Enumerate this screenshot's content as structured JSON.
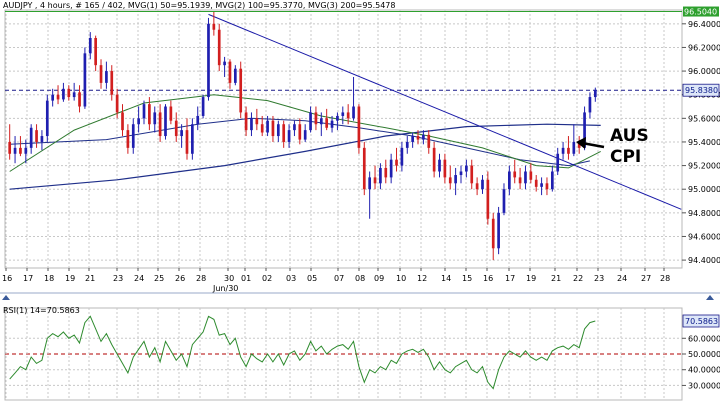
{
  "header": {
    "main": "AUDJPY , 4 hours, # 165 / 402, MVG(1) 50=95.1939, MVG(2) 100=95.3770, MVG(3) 200=95.5478",
    "rsi": "RSI(1) 14=70.5863"
  },
  "colors": {
    "bull": "#1f1fb0",
    "bear": "#d21f1f",
    "mvg50": "#2f7a2f",
    "mvg100": "#1f2f8a",
    "mvg200": "#1f2f8a",
    "trend": "#1a1aa8",
    "rsi": "#2e8b2e",
    "rsi_ref": "#b00000",
    "grid": "#c8c8c8",
    "price_badge_bg": "#dde6f8",
    "price_badge_fg": "#0a1a8a"
  },
  "price_axis": {
    "labels": [
      "96.4000",
      "96.2000",
      "96.0000",
      "95.8000",
      "95.6000",
      "95.4000",
      "95.2000",
      "95.0000",
      "94.8000",
      "94.6000",
      "94.4000"
    ],
    "top_label": "96.5040",
    "current_label": "95.8380"
  },
  "rsi_axis": {
    "labels": [
      "60.0000",
      "50.0000",
      "40.0000",
      "30.0000"
    ],
    "current_label": "70.5863"
  },
  "x_axis": {
    "labels": [
      "16",
      "17",
      "18",
      "19",
      "21",
      "23",
      "24",
      "25",
      "26",
      "28",
      "30",
      "01",
      "02",
      "03",
      "05",
      "07",
      "08",
      "09",
      "10",
      "12",
      "14",
      "15",
      "16",
      "17",
      "19",
      "21",
      "22",
      "23",
      "24",
      "27",
      "28"
    ],
    "sublabel": "Jun/30"
  },
  "annotation": {
    "line1": "AUS",
    "line2": "CPI"
  },
  "chart_data": {
    "type": "candlestick",
    "timeframe": "4 hours",
    "symbol": "AUDJPY",
    "ylim": [
      94.35,
      96.5
    ],
    "rsi_ylim": [
      22,
      78
    ],
    "rsi_reference": 50,
    "current_price": 95.838,
    "top_line": 96.504,
    "candles": [
      [
        95.4,
        95.55,
        95.25,
        95.3
      ],
      [
        95.3,
        95.45,
        95.22,
        95.35
      ],
      [
        95.35,
        95.45,
        95.28,
        95.3
      ],
      [
        95.3,
        95.42,
        95.22,
        95.35
      ],
      [
        95.35,
        95.55,
        95.3,
        95.52
      ],
      [
        95.5,
        95.55,
        95.35,
        95.4
      ],
      [
        95.4,
        95.5,
        95.33,
        95.45
      ],
      [
        95.45,
        95.8,
        95.4,
        95.75
      ],
      [
        95.75,
        95.85,
        95.7,
        95.8
      ],
      [
        95.8,
        95.88,
        95.72,
        95.76
      ],
      [
        95.76,
        95.9,
        95.74,
        95.85
      ],
      [
        95.85,
        95.88,
        95.75,
        95.78
      ],
      [
        95.78,
        95.9,
        95.75,
        95.82
      ],
      [
        95.82,
        95.88,
        95.65,
        95.7
      ],
      [
        95.7,
        96.2,
        95.68,
        96.15
      ],
      [
        96.15,
        96.33,
        96.1,
        96.28
      ],
      [
        96.28,
        96.3,
        96.0,
        96.05
      ],
      [
        96.05,
        96.1,
        95.85,
        95.9
      ],
      [
        95.9,
        96.08,
        95.85,
        96.0
      ],
      [
        96.0,
        96.05,
        95.75,
        95.8
      ],
      [
        95.8,
        95.85,
        95.6,
        95.65
      ],
      [
        95.65,
        95.72,
        95.45,
        95.5
      ],
      [
        95.5,
        95.55,
        95.3,
        95.35
      ],
      [
        95.35,
        95.6,
        95.3,
        95.55
      ],
      [
        95.55,
        95.7,
        95.48,
        95.6
      ],
      [
        95.6,
        95.75,
        95.55,
        95.72
      ],
      [
        95.72,
        95.78,
        95.5,
        95.55
      ],
      [
        95.55,
        95.7,
        95.48,
        95.65
      ],
      [
        95.65,
        95.72,
        95.4,
        95.45
      ],
      [
        95.45,
        95.72,
        95.42,
        95.7
      ],
      [
        95.7,
        95.75,
        95.55,
        95.58
      ],
      [
        95.58,
        95.65,
        95.4,
        95.45
      ],
      [
        95.45,
        95.55,
        95.35,
        95.5
      ],
      [
        95.5,
        95.6,
        95.25,
        95.3
      ],
      [
        95.3,
        95.6,
        95.25,
        95.55
      ],
      [
        95.55,
        95.7,
        95.5,
        95.62
      ],
      [
        95.62,
        95.8,
        95.6,
        95.78
      ],
      [
        95.78,
        96.45,
        95.75,
        96.4
      ],
      [
        96.4,
        96.5,
        96.3,
        96.35
      ],
      [
        96.35,
        96.4,
        96.0,
        96.05
      ],
      [
        96.05,
        96.12,
        95.95,
        96.08
      ],
      [
        96.08,
        96.1,
        95.85,
        95.9
      ],
      [
        95.9,
        96.05,
        95.88,
        96.02
      ],
      [
        96.02,
        96.08,
        95.6,
        95.65
      ],
      [
        95.65,
        95.7,
        95.45,
        95.5
      ],
      [
        95.5,
        95.65,
        95.45,
        95.6
      ],
      [
        95.6,
        95.68,
        95.5,
        95.55
      ],
      [
        95.55,
        95.62,
        95.45,
        95.48
      ],
      [
        95.48,
        95.62,
        95.45,
        95.58
      ],
      [
        95.58,
        95.62,
        95.4,
        95.45
      ],
      [
        95.45,
        95.58,
        95.4,
        95.55
      ],
      [
        95.55,
        95.58,
        95.35,
        95.4
      ],
      [
        95.4,
        95.55,
        95.35,
        95.5
      ],
      [
        95.5,
        95.58,
        95.45,
        95.55
      ],
      [
        95.55,
        95.6,
        95.38,
        95.42
      ],
      [
        95.42,
        95.55,
        95.4,
        95.5
      ],
      [
        95.5,
        95.7,
        95.48,
        95.65
      ],
      [
        95.65,
        95.7,
        95.5,
        95.55
      ],
      [
        95.55,
        95.65,
        95.45,
        95.6
      ],
      [
        95.6,
        95.68,
        95.5,
        95.52
      ],
      [
        95.52,
        95.62,
        95.48,
        95.58
      ],
      [
        95.58,
        95.65,
        95.5,
        95.62
      ],
      [
        95.62,
        95.7,
        95.55,
        95.65
      ],
      [
        95.65,
        95.72,
        95.55,
        95.6
      ],
      [
        95.6,
        95.95,
        95.58,
        95.7
      ],
      [
        95.7,
        95.72,
        95.3,
        95.35
      ],
      [
        95.35,
        95.4,
        94.95,
        95.0
      ],
      [
        95.0,
        95.15,
        94.75,
        95.1
      ],
      [
        95.1,
        95.2,
        95.0,
        95.05
      ],
      [
        95.05,
        95.22,
        95.0,
        95.18
      ],
      [
        95.18,
        95.25,
        95.05,
        95.1
      ],
      [
        95.1,
        95.3,
        95.05,
        95.25
      ],
      [
        95.25,
        95.35,
        95.15,
        95.2
      ],
      [
        95.2,
        95.4,
        95.15,
        95.35
      ],
      [
        95.35,
        95.45,
        95.3,
        95.4
      ],
      [
        95.4,
        95.48,
        95.35,
        95.45
      ],
      [
        95.45,
        95.5,
        95.38,
        95.42
      ],
      [
        95.42,
        95.5,
        95.38,
        95.46
      ],
      [
        95.46,
        95.5,
        95.3,
        95.35
      ],
      [
        95.35,
        95.4,
        95.1,
        95.15
      ],
      [
        95.15,
        95.3,
        95.1,
        95.25
      ],
      [
        95.25,
        95.3,
        95.05,
        95.1
      ],
      [
        95.1,
        95.2,
        95.0,
        95.05
      ],
      [
        95.05,
        95.18,
        94.95,
        95.12
      ],
      [
        95.12,
        95.2,
        95.05,
        95.15
      ],
      [
        95.15,
        95.25,
        95.1,
        95.2
      ],
      [
        95.2,
        95.25,
        95.0,
        95.05
      ],
      [
        95.05,
        95.1,
        94.95,
        95.0
      ],
      [
        95.0,
        95.12,
        94.96,
        95.08
      ],
      [
        95.08,
        95.15,
        94.7,
        94.75
      ],
      [
        94.75,
        94.8,
        94.4,
        94.5
      ],
      [
        94.5,
        94.85,
        94.45,
        94.8
      ],
      [
        94.8,
        95.05,
        94.78,
        95.0
      ],
      [
        95.0,
        95.2,
        94.95,
        95.15
      ],
      [
        95.15,
        95.25,
        95.05,
        95.1
      ],
      [
        95.1,
        95.18,
        95.0,
        95.05
      ],
      [
        95.05,
        95.2,
        95.0,
        95.15
      ],
      [
        95.15,
        95.22,
        95.05,
        95.08
      ],
      [
        95.08,
        95.12,
        94.98,
        95.02
      ],
      [
        95.02,
        95.1,
        94.95,
        95.05
      ],
      [
        95.05,
        95.1,
        94.95,
        95.0
      ],
      [
        95.0,
        95.2,
        94.98,
        95.15
      ],
      [
        95.15,
        95.35,
        95.12,
        95.3
      ],
      [
        95.3,
        95.4,
        95.25,
        95.35
      ],
      [
        95.35,
        95.45,
        95.25,
        95.3
      ],
      [
        95.3,
        95.55,
        95.28,
        95.4
      ],
      [
        95.4,
        95.45,
        95.3,
        95.35
      ],
      [
        95.35,
        95.7,
        95.33,
        95.65
      ],
      [
        95.65,
        95.82,
        95.6,
        95.78
      ],
      [
        95.78,
        95.86,
        95.74,
        95.84
      ]
    ],
    "mvg50": [
      [
        0,
        95.15
      ],
      [
        12,
        95.5
      ],
      [
        25,
        95.73
      ],
      [
        38,
        95.8
      ],
      [
        48,
        95.75
      ],
      [
        58,
        95.62
      ],
      [
        70,
        95.52
      ],
      [
        78,
        95.45
      ],
      [
        88,
        95.35
      ],
      [
        98,
        95.2
      ],
      [
        104,
        95.18
      ],
      [
        110,
        95.32
      ]
    ],
    "mvg100": [
      [
        0,
        95.38
      ],
      [
        18,
        95.42
      ],
      [
        35,
        95.55
      ],
      [
        45,
        95.6
      ],
      [
        55,
        95.58
      ],
      [
        65,
        95.52
      ],
      [
        75,
        95.45
      ],
      [
        85,
        95.35
      ],
      [
        95,
        95.25
      ],
      [
        104,
        95.2
      ],
      [
        108,
        95.24
      ]
    ],
    "mvg200": [
      [
        0,
        95.0
      ],
      [
        20,
        95.08
      ],
      [
        40,
        95.2
      ],
      [
        55,
        95.32
      ],
      [
        70,
        95.45
      ],
      [
        85,
        95.53
      ],
      [
        100,
        95.55
      ],
      [
        110,
        95.54
      ]
    ],
    "trendline": [
      [
        37,
        96.48
      ],
      [
        125,
        94.83
      ]
    ],
    "rsi": [
      34,
      38,
      42,
      40,
      48,
      44,
      46,
      60,
      63,
      61,
      64,
      60,
      62,
      57,
      70,
      74,
      66,
      58,
      63,
      56,
      50,
      44,
      38,
      48,
      53,
      58,
      48,
      54,
      45,
      58,
      52,
      46,
      50,
      42,
      56,
      60,
      64,
      74,
      72,
      62,
      63,
      56,
      60,
      48,
      42,
      50,
      47,
      45,
      50,
      45,
      50,
      43,
      50,
      52,
      46,
      50,
      58,
      52,
      55,
      50,
      53,
      55,
      56,
      53,
      58,
      42,
      32,
      40,
      38,
      42,
      40,
      46,
      44,
      50,
      52,
      53,
      51,
      53,
      48,
      40,
      45,
      40,
      38,
      42,
      44,
      46,
      40,
      38,
      42,
      32,
      28,
      40,
      48,
      52,
      50,
      48,
      52,
      48,
      46,
      48,
      46,
      52,
      54,
      55,
      53,
      56,
      54,
      66,
      70,
      71
    ]
  }
}
